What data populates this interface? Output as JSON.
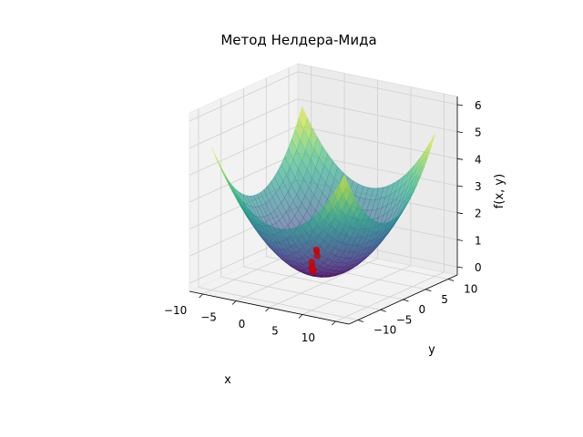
{
  "chart_data": {
    "type": "surface3d",
    "title": "Метод Нелдера-Мида",
    "xlabel": "x",
    "ylabel": "y",
    "zlabel": "f(x, y)",
    "xlim": [
      -12,
      12
    ],
    "ylim": [
      -12,
      12
    ],
    "zlim": [
      -0.3,
      6.3
    ],
    "x_ticks": [
      -10,
      -5,
      0,
      5,
      10
    ],
    "y_ticks": [
      -10,
      -5,
      0,
      5,
      10
    ],
    "z_ticks": [
      0,
      1,
      2,
      3,
      4,
      5,
      6
    ],
    "x_tick_labels": [
      "−10",
      "−5",
      "0",
      "5",
      "10"
    ],
    "y_tick_labels": [
      "−10",
      "−5",
      "0",
      "5",
      "10"
    ],
    "z_tick_labels": [
      "0",
      "1",
      "2",
      "3",
      "4",
      "5",
      "6"
    ],
    "grid": true,
    "colormap": "viridis",
    "surface_alpha": 0.6,
    "surface": {
      "function": "f(x, y) = 0.0248*x^2 + 0.0248*y^2",
      "x_range": [
        -10,
        10
      ],
      "y_range": [
        -10,
        10
      ]
    },
    "points": {
      "color": "#cc0000",
      "x": [
        -6.5,
        -6.1,
        -5.0,
        -4.2,
        -3.2,
        -2.6,
        -2.1,
        -1.9
      ],
      "y": [
        8.0,
        7.5,
        6.0,
        3.6,
        2.2,
        1.3,
        0.8,
        0.5
      ],
      "z": [
        0.0,
        0.0,
        0.0,
        0.0,
        0.0,
        0.0,
        0.0,
        0.0
      ]
    }
  }
}
